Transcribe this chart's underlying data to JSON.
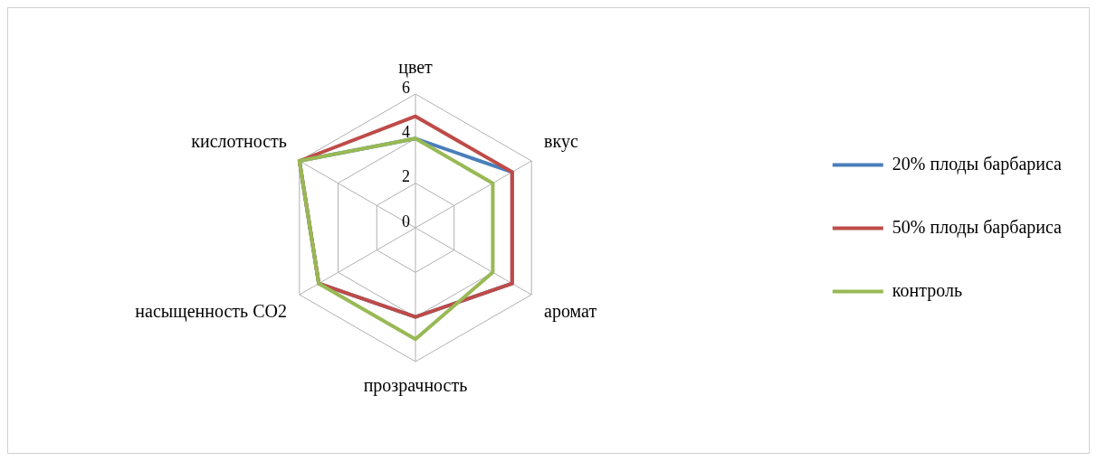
{
  "chart_data": {
    "type": "radar",
    "categories": [
      "цвет",
      "вкус",
      "аромат",
      "прозрачность",
      "насыщенность CO2",
      "кислотность"
    ],
    "series": [
      {
        "name": "20% плоды барбариса",
        "color": "#4a7ebb",
        "values": [
          4,
          5,
          5,
          4,
          5,
          6
        ]
      },
      {
        "name": "50% плоды барбариса",
        "color": "#be4b48",
        "values": [
          5,
          5,
          5,
          4,
          5,
          6
        ]
      },
      {
        "name": "контроль",
        "color": "#98b954",
        "values": [
          4,
          4,
          4,
          5,
          5,
          6
        ]
      }
    ],
    "ylim": [
      0,
      6
    ],
    "yticks": [
      0,
      2,
      4,
      6
    ],
    "grid": true,
    "legend": "right",
    "marker": "none"
  }
}
